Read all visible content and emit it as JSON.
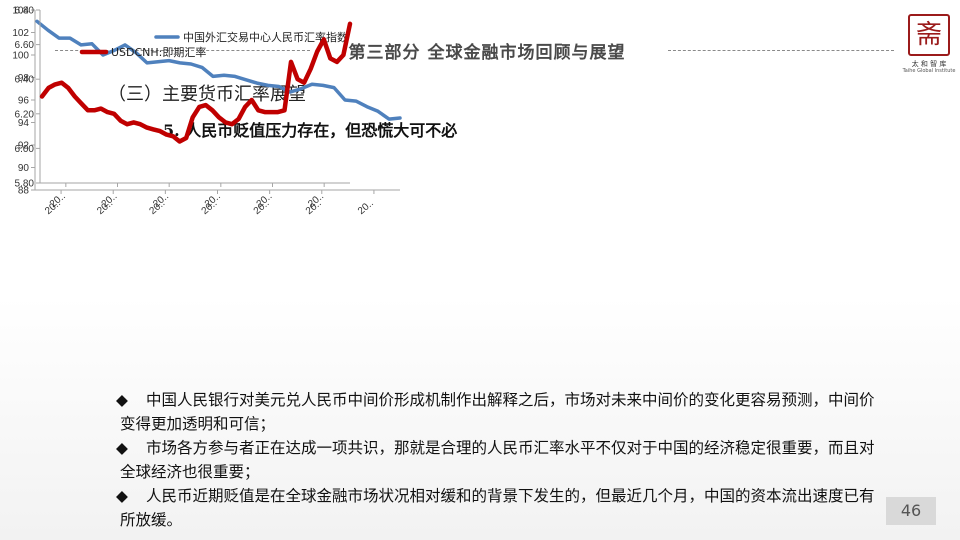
{
  "header": {
    "title": "第三部分 全球金融市场回顾与展望"
  },
  "logo": {
    "glyph": "斋",
    "name_cn": "太 和 智 库",
    "name_en": "Taihe Global Institute"
  },
  "section_title": "（三）主要货币汇率展望",
  "sub_title": "5. 人民币贬值压力存在，但恐慌大可不必",
  "chart_data": [
    {
      "type": "line",
      "title": "",
      "legend": "top-right",
      "series": [
        {
          "name": "中国外汇交易中心人民币汇率指数",
          "color": "#4f81bd",
          "values": [
            103.0,
            102.2,
            101.5,
            101.5,
            100.9,
            101.0,
            100.0,
            100.4,
            100.9,
            100.2,
            99.3,
            99.4,
            99.5,
            99.3,
            99.2,
            98.9,
            98.1,
            98.2,
            98.1,
            97.8,
            97.5,
            97.3,
            97.2,
            96.7,
            97.0,
            97.4,
            97.3,
            97.1,
            96.0,
            95.9,
            95.4,
            95.0,
            94.3,
            94.4
          ]
        }
      ],
      "y_ticks": [
        "104",
        "102",
        "100",
        "98",
        "96",
        "94",
        "92",
        "90",
        "88"
      ],
      "ylim": [
        88,
        104
      ],
      "x_ticks": [
        "20..",
        "20..",
        "20..",
        "20..",
        "20..",
        "20..",
        "20.."
      ]
    },
    {
      "type": "line",
      "title": "",
      "legend": "top-left",
      "series": [
        {
          "name": "USDCNH:即期汇率",
          "color": "#c00000",
          "values": [
            6.3,
            6.35,
            6.37,
            6.38,
            6.35,
            6.3,
            6.26,
            6.22,
            6.22,
            6.23,
            6.21,
            6.2,
            6.16,
            6.14,
            6.15,
            6.14,
            6.12,
            6.11,
            6.1,
            6.08,
            6.07,
            6.04,
            6.06,
            6.18,
            6.24,
            6.25,
            6.22,
            6.18,
            6.15,
            6.14,
            6.17,
            6.24,
            6.28,
            6.22,
            6.21,
            6.21,
            6.21,
            6.22,
            6.5,
            6.4,
            6.38,
            6.46,
            6.56,
            6.63,
            6.52,
            6.5,
            6.54,
            6.72
          ]
        }
      ],
      "y_ticks": [
        "6.80",
        "6.60",
        "6.40",
        "6.20",
        "6.00",
        "5.80"
      ],
      "ylim": [
        5.8,
        6.8
      ],
      "x_ticks": [
        "20..",
        "20..",
        "20..",
        "20..",
        "20..",
        "20.."
      ]
    }
  ],
  "bullets": [
    {
      "mark": "◆",
      "text": "中国人民银行对美元兑人民币中间价形成机制作出解释之后，市场对未来中间价的变化更容易预测，中间价变得更加透明和可信；"
    },
    {
      "mark": "◆",
      "text": "市场各方参与者正在达成一项共识，那就是合理的人民币汇率水平不仅对于中国的经济稳定很重要，而且对全球经济也很重要；"
    },
    {
      "mark": "◆",
      "text": "人民币近期贬值是在全球金融市场状况相对缓和的背景下发生的，但最近几个月，中国的资本流出速度已有所放缓。"
    }
  ],
  "page_number": "46"
}
